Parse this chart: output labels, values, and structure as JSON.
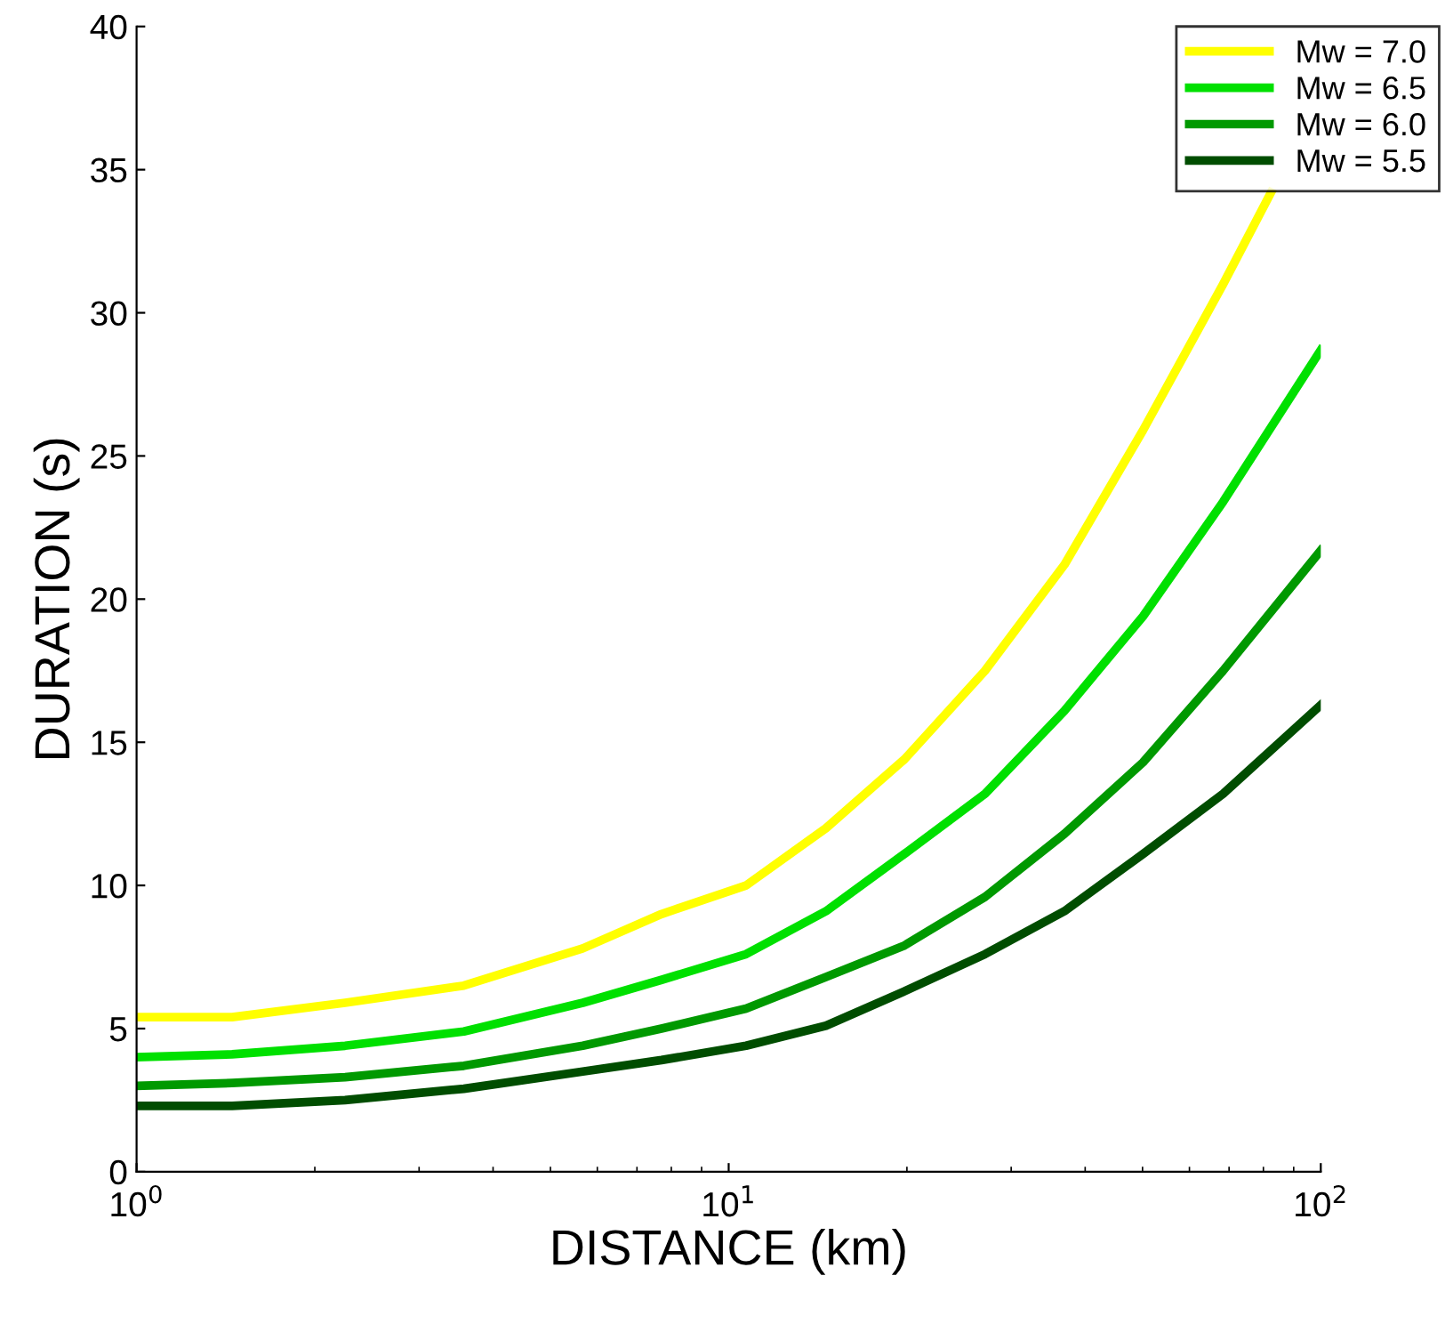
{
  "chart_data": {
    "type": "line",
    "xlabel": "DISTANCE (km)",
    "ylabel": "DURATION (s)",
    "log": "x",
    "xlim": [
      1,
      100
    ],
    "ylim": [
      0,
      40
    ],
    "xticks": [
      {
        "value": 1,
        "label": "10$^{0}$"
      },
      {
        "value": 10,
        "label": "10$^{1}$"
      },
      {
        "value": 100,
        "label": "10$^{2}$"
      }
    ],
    "yticks": [
      0,
      5,
      10,
      15,
      20,
      25,
      30,
      35,
      40
    ],
    "grid": false,
    "legend": "top right",
    "marker": "none",
    "line_style": "solid",
    "series": [
      {
        "name": "Mw = 7.0",
        "color": "#ffff00",
        "x": [
          1,
          1.45,
          2.25,
          3.57,
          5.67,
          7.7,
          10.7,
          14.6,
          19.8,
          27.1,
          36.9,
          50.1,
          68.4,
          82.4
        ],
        "values": [
          5.4,
          5.4,
          5.9,
          6.5,
          7.8,
          9.0,
          10.0,
          12.0,
          14.4,
          17.5,
          21.2,
          25.9,
          31.0,
          34.2
        ]
      },
      {
        "name": "Mw = 6.5",
        "color": "#00e000",
        "x": [
          1,
          1.45,
          2.25,
          3.57,
          5.67,
          7.7,
          10.7,
          14.6,
          19.8,
          27.1,
          36.9,
          50.1,
          68.4,
          100
        ],
        "values": [
          4.0,
          4.1,
          4.4,
          4.9,
          5.9,
          6.7,
          7.6,
          9.1,
          11.1,
          13.2,
          16.1,
          19.4,
          23.4,
          28.7
        ]
      },
      {
        "name": "Mw = 6.0",
        "color": "#009900",
        "x": [
          1,
          1.45,
          2.25,
          3.57,
          5.67,
          7.7,
          10.7,
          14.6,
          19.8,
          27.1,
          36.9,
          50.1,
          68.4,
          100
        ],
        "values": [
          3.0,
          3.1,
          3.3,
          3.7,
          4.4,
          5.0,
          5.7,
          6.8,
          7.9,
          9.6,
          11.8,
          14.3,
          17.5,
          21.7
        ]
      },
      {
        "name": "Mw = 5.5",
        "color": "#004d00",
        "x": [
          1,
          1.45,
          2.25,
          3.57,
          5.67,
          7.7,
          10.7,
          14.6,
          19.8,
          27.1,
          36.9,
          50.1,
          68.4,
          100
        ],
        "values": [
          2.3,
          2.3,
          2.5,
          2.9,
          3.5,
          3.9,
          4.4,
          5.1,
          6.3,
          7.6,
          9.1,
          11.1,
          13.2,
          16.3
        ]
      }
    ]
  }
}
